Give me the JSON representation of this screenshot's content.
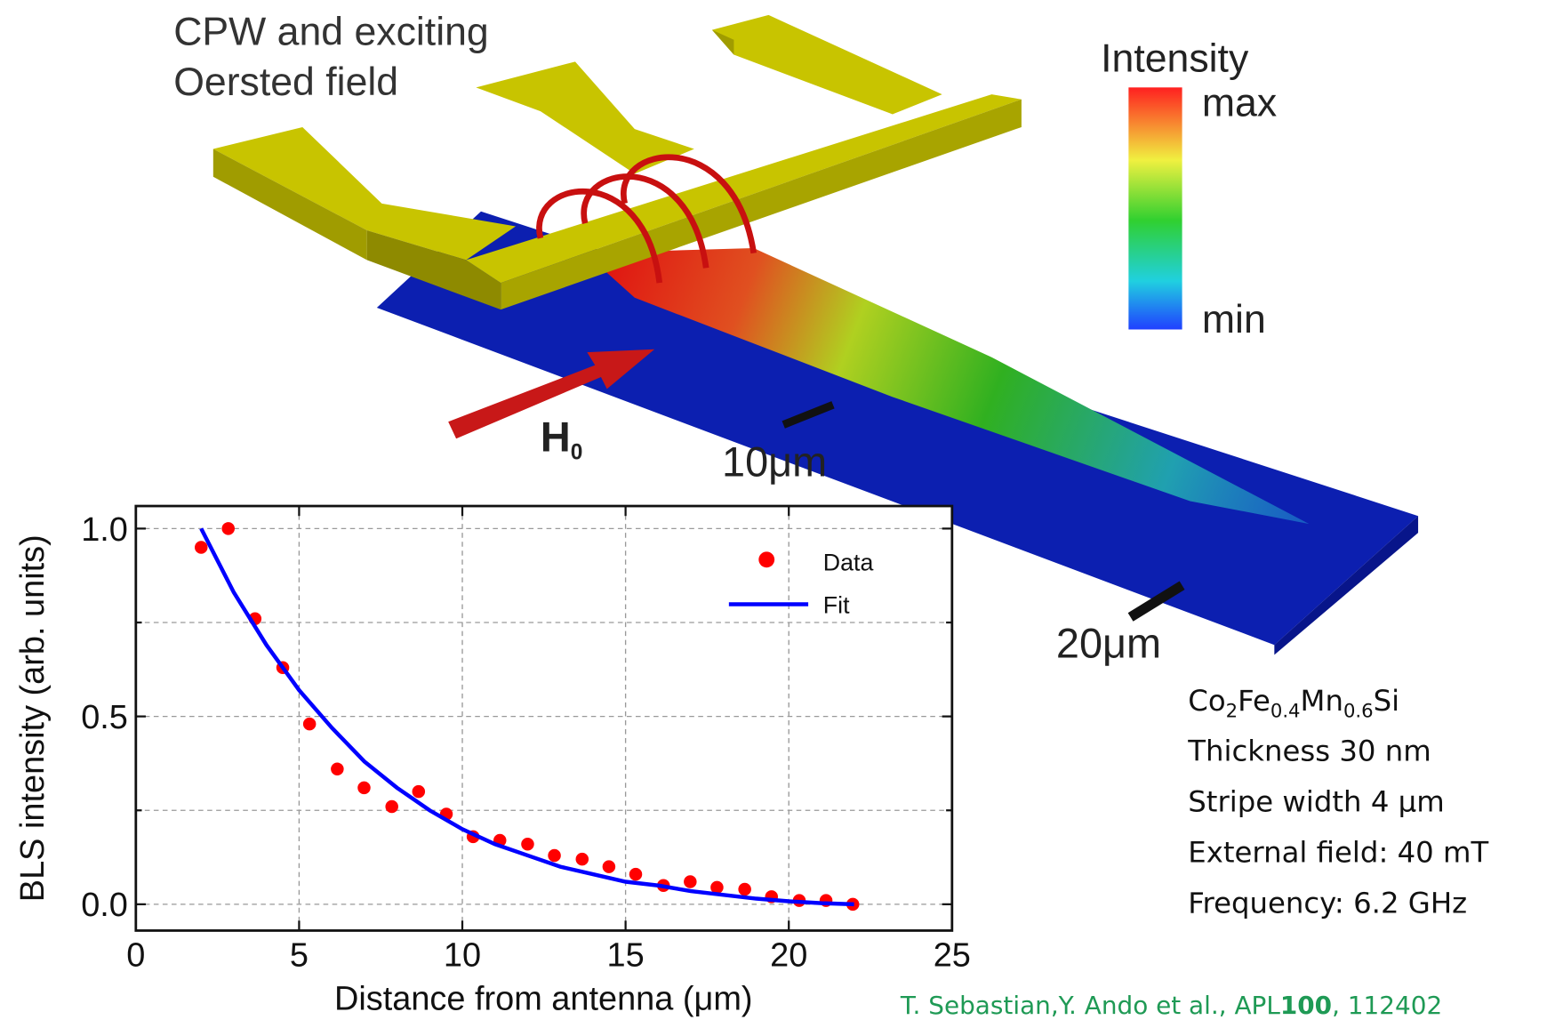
{
  "header": {
    "title_lines": [
      "CPW and exciting",
      "Oersted field"
    ]
  },
  "colorbar": {
    "title": "Intensity",
    "max_label": "max",
    "min_label": "min"
  },
  "field_label": [
    "H",
    "0"
  ],
  "scale_labels": [
    "10μm",
    "20μm"
  ],
  "sample": {
    "material": [
      "Co",
      "2",
      "Fe",
      "0.4",
      "Mn",
      "0.6",
      "Si"
    ],
    "lines": [
      "Thickness 30 nm",
      "Stripe width 4 μm",
      "External field: 40 mT",
      "Frequency: 6.2 GHz"
    ]
  },
  "citation": [
    "T. Sebastian,Y. Ando et al., APL",
    "100",
    ", 112402"
  ],
  "chart_data": {
    "type": "scatter",
    "xlabel": "Distance from antenna (μm)",
    "ylabel": "BLS intensity (arb. units)",
    "xlim": [
      0,
      25
    ],
    "xticks": [
      0,
      5,
      10,
      15,
      20,
      25
    ],
    "ylim": [
      -0.07,
      1.06
    ],
    "yticks": [
      {
        "value": 0,
        "label": "0.0"
      },
      0.5,
      {
        "value": 1,
        "label": "1.0"
      }
    ],
    "yticks_minor": [
      0.25,
      0.75
    ],
    "grid": true,
    "legend": "upper right",
    "series": [
      {
        "name": "Data",
        "type": "scatter",
        "color": "#ff0000",
        "x": [
          2.0,
          2.83,
          3.65,
          4.5,
          5.32,
          6.17,
          6.99,
          7.84,
          8.66,
          9.51,
          10.33,
          11.15,
          12.0,
          12.82,
          13.67,
          14.49,
          15.31,
          16.16,
          16.98,
          17.8,
          18.65,
          19.47,
          20.32,
          21.14,
          21.96
        ],
        "values": [
          0.95,
          1.0,
          0.76,
          0.63,
          0.48,
          0.36,
          0.31,
          0.26,
          0.3,
          0.24,
          0.18,
          0.17,
          0.16,
          0.13,
          0.12,
          0.1,
          0.08,
          0.05,
          0.06,
          0.045,
          0.04,
          0.02,
          0.01,
          0.01,
          0.0
        ]
      },
      {
        "name": "Fit",
        "type": "line",
        "color": "#0000ff",
        "x": [
          2,
          3,
          4,
          5,
          6,
          7,
          8,
          9,
          10,
          11,
          12,
          13,
          14,
          15,
          16,
          17,
          18,
          19,
          20,
          21,
          22
        ],
        "values": [
          1.0,
          0.83,
          0.69,
          0.57,
          0.47,
          0.38,
          0.31,
          0.25,
          0.2,
          0.16,
          0.13,
          0.1,
          0.08,
          0.06,
          0.05,
          0.035,
          0.025,
          0.015,
          0.008,
          0.003,
          0.0
        ]
      }
    ]
  }
}
